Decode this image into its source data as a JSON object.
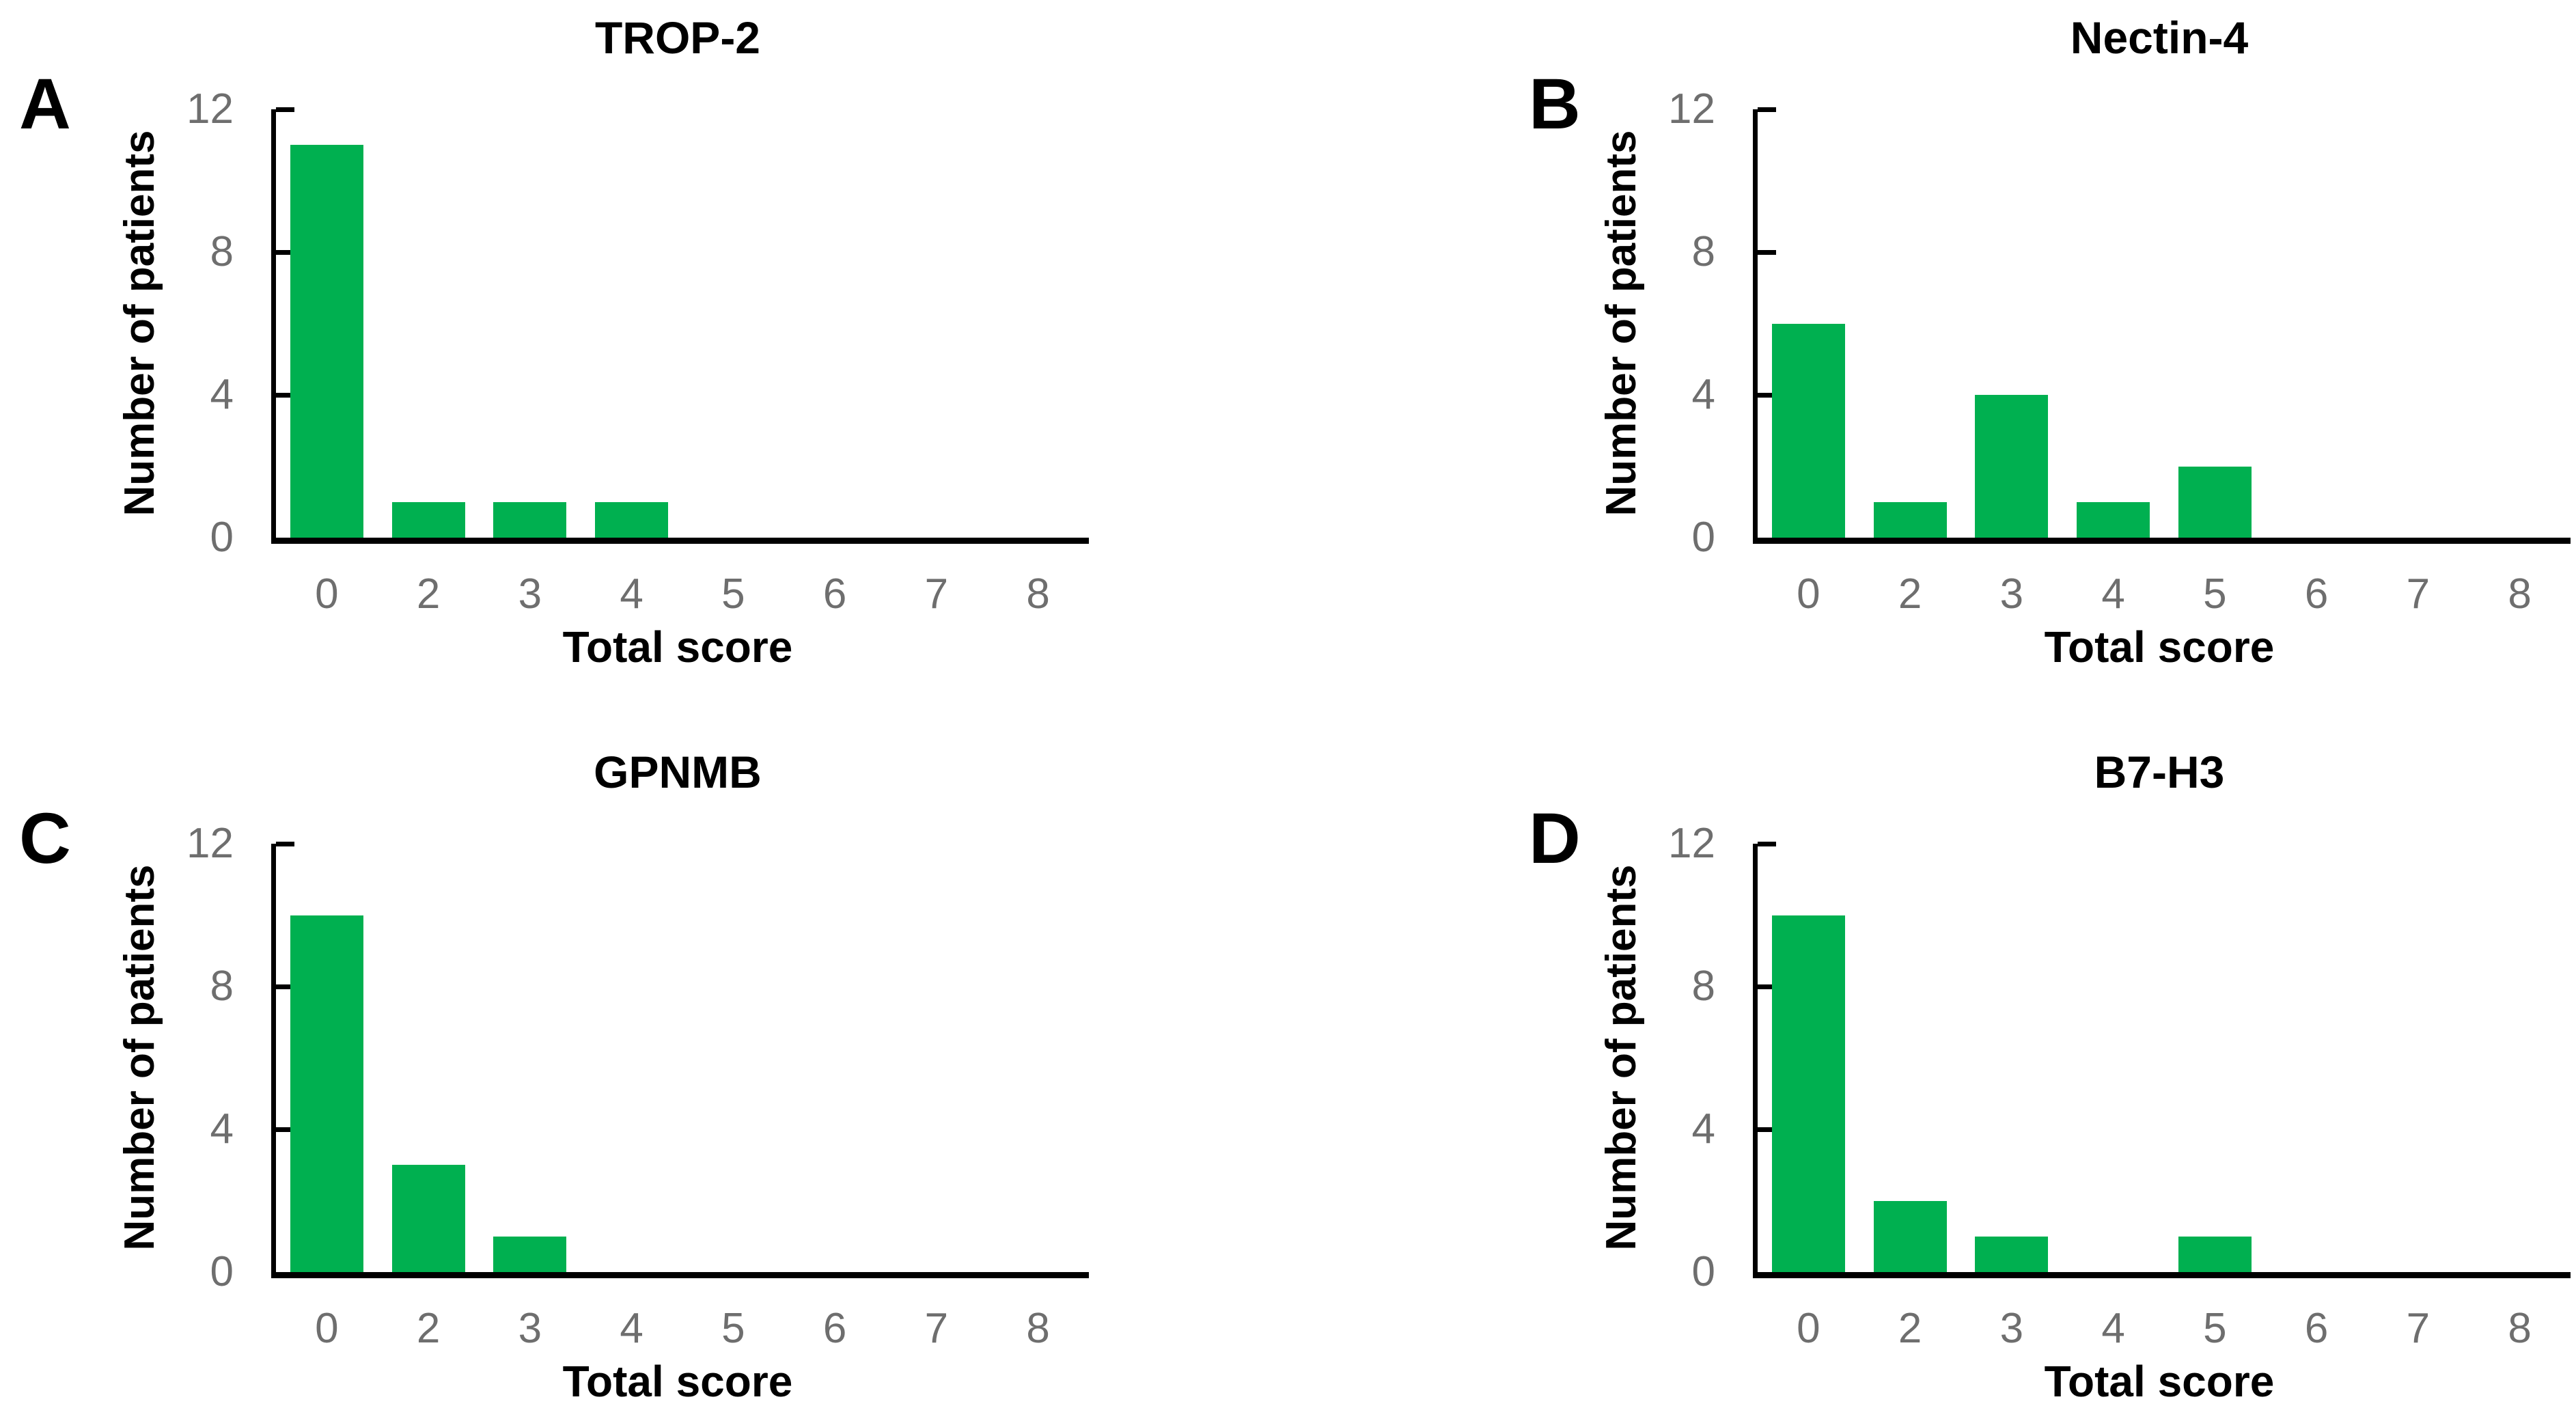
{
  "figure": {
    "y_axis_label": "Number of patients",
    "x_axis_label": "Total score",
    "colors": {
      "bar": "#00B050",
      "axis": "#000000",
      "tick_label": "#6E6E6E",
      "text": "#000000",
      "background": "#FFFFFF"
    }
  },
  "chart_data": [
    {
      "type": "bar",
      "panel_letter": "A",
      "title": "TROP-2",
      "categories": [
        "0",
        "2",
        "3",
        "4",
        "5",
        "6",
        "7",
        "8"
      ],
      "values": [
        11,
        1,
        1,
        1,
        0,
        0,
        0,
        0
      ],
      "xlabel": "Total score",
      "ylabel": "Number of patients",
      "ylim": [
        0,
        12
      ],
      "yticks": [
        0,
        4,
        8,
        12
      ],
      "grid": false,
      "legend": null
    },
    {
      "type": "bar",
      "panel_letter": "B",
      "title": "Nectin-4",
      "categories": [
        "0",
        "2",
        "3",
        "4",
        "5",
        "6",
        "7",
        "8"
      ],
      "values": [
        6,
        1,
        4,
        1,
        2,
        0,
        0,
        0
      ],
      "xlabel": "Total score",
      "ylabel": "Number of patients",
      "ylim": [
        0,
        12
      ],
      "yticks": [
        0,
        4,
        8,
        12
      ],
      "grid": false,
      "legend": null
    },
    {
      "type": "bar",
      "panel_letter": "C",
      "title": "GPNMB",
      "categories": [
        "0",
        "2",
        "3",
        "4",
        "5",
        "6",
        "7",
        "8"
      ],
      "values": [
        10,
        3,
        1,
        0,
        0,
        0,
        0,
        0
      ],
      "xlabel": "Total score",
      "ylabel": "Number of patients",
      "ylim": [
        0,
        12
      ],
      "yticks": [
        0,
        4,
        8,
        12
      ],
      "grid": false,
      "legend": null
    },
    {
      "type": "bar",
      "panel_letter": "D",
      "title": "B7-H3",
      "categories": [
        "0",
        "2",
        "3",
        "4",
        "5",
        "6",
        "7",
        "8"
      ],
      "values": [
        10,
        2,
        1,
        0,
        1,
        0,
        0,
        0
      ],
      "xlabel": "Total score",
      "ylabel": "Number of patients",
      "ylim": [
        0,
        12
      ],
      "yticks": [
        0,
        4,
        8,
        12
      ],
      "grid": false,
      "legend": null
    }
  ]
}
